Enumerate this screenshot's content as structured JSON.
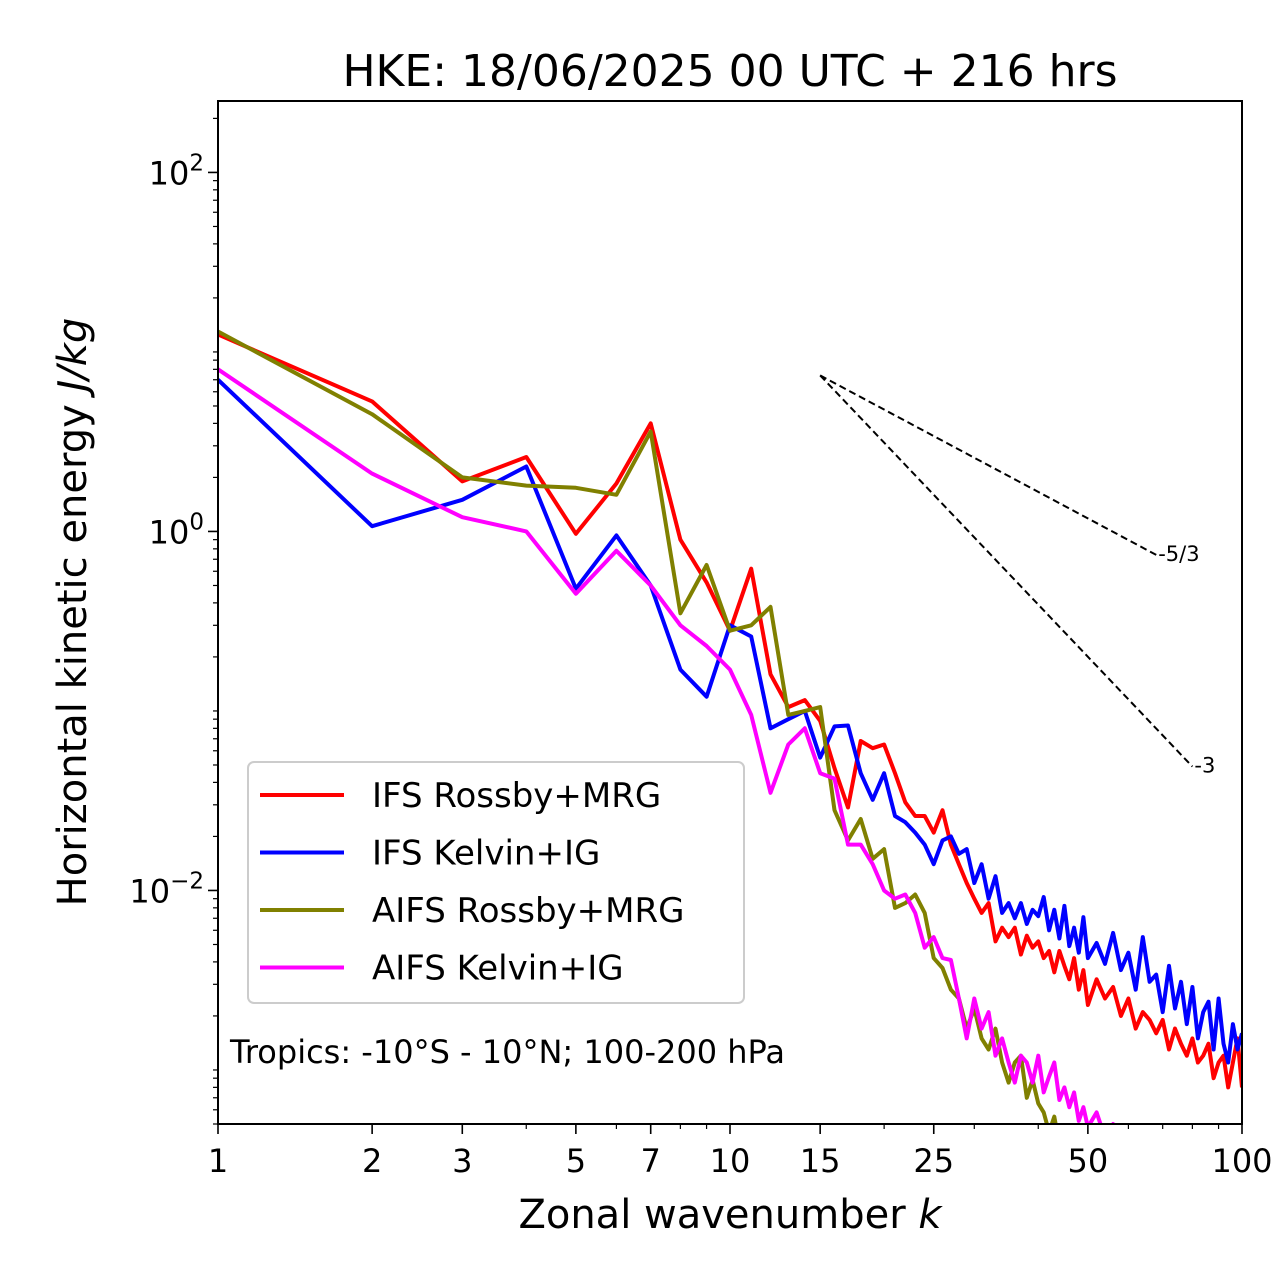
{
  "chart_data": {
    "type": "line",
    "title": "HKE: 18/06/2025 00 UTC + 216 hrs",
    "xlabel": "Zonal wavenumber k",
    "ylabel": "Horizontal kinetic energy J/kg",
    "x_scale": "log",
    "y_scale": "log",
    "xlim": [
      1,
      100
    ],
    "ylim": [
      0.0005,
      250
    ],
    "x_ticks": [
      1,
      2,
      3,
      5,
      7,
      10,
      15,
      25,
      50,
      100
    ],
    "x_tick_labels": [
      "1",
      "2",
      "3",
      "5",
      "7",
      "10",
      "15",
      "25",
      "50",
      "100"
    ],
    "y_ticks": [
      0.01,
      1,
      100
    ],
    "y_tick_labels": [
      "10^{−2}",
      "10^{0}",
      "10^{2}"
    ],
    "legend_position": "lower-left",
    "annotation": "Tropics: -10°S - 10°N; 100-200 hPa",
    "reference_lines": [
      {
        "label": "-5/3",
        "slope": -1.6667,
        "x": [
          15,
          68
        ],
        "y": [
          7.4,
          0.74
        ]
      },
      {
        "label": "-3",
        "slope": -3,
        "x": [
          15,
          80
        ],
        "y": [
          7.4,
          0.049
        ]
      }
    ],
    "series": [
      {
        "name": "IFS Rossby+MRG",
        "color": "#ff0000",
        "x": [
          1,
          2,
          3,
          4,
          5,
          6,
          7,
          8,
          9,
          10,
          11,
          12,
          13,
          14,
          15,
          16,
          17,
          18,
          19,
          20,
          21,
          22,
          23,
          24,
          25,
          26,
          27,
          28,
          29,
          30,
          31,
          32,
          33,
          34,
          35,
          36,
          37,
          38,
          39,
          40,
          41,
          42,
          43,
          44,
          45,
          46,
          47,
          48,
          49,
          50,
          52,
          54,
          56,
          58,
          60,
          62,
          64,
          66,
          68,
          70,
          72,
          74,
          76,
          78,
          80,
          82,
          84,
          86,
          88,
          90,
          92,
          94,
          96,
          98,
          100
        ],
        "y": [
          12.5,
          5.3,
          1.9,
          2.6,
          0.97,
          1.85,
          4.0,
          0.9,
          0.52,
          0.28,
          0.62,
          0.16,
          0.105,
          0.115,
          0.088,
          0.048,
          0.029,
          0.068,
          0.062,
          0.065,
          0.045,
          0.031,
          0.026,
          0.026,
          0.021,
          0.028,
          0.018,
          0.014,
          0.011,
          0.009,
          0.0075,
          0.0085,
          0.0052,
          0.0062,
          0.0055,
          0.0062,
          0.0044,
          0.0056,
          0.0048,
          0.0052,
          0.0042,
          0.0046,
          0.0035,
          0.0046,
          0.0038,
          0.0032,
          0.0042,
          0.0028,
          0.0036,
          0.0023,
          0.0032,
          0.0025,
          0.0029,
          0.002,
          0.0025,
          0.0017,
          0.0021,
          0.0019,
          0.0016,
          0.0019,
          0.0013,
          0.0017,
          0.0014,
          0.0012,
          0.0015,
          0.0011,
          0.0012,
          0.0014,
          0.0009,
          0.0011,
          0.0012,
          0.0008,
          0.0011,
          0.0015,
          0.0008
        ]
      },
      {
        "name": "IFS Kelvin+IG",
        "color": "#0000ff",
        "x": [
          1,
          2,
          3,
          4,
          5,
          6,
          7,
          8,
          9,
          10,
          11,
          12,
          13,
          14,
          15,
          16,
          17,
          18,
          19,
          20,
          21,
          22,
          23,
          24,
          25,
          26,
          27,
          28,
          29,
          30,
          31,
          32,
          33,
          34,
          35,
          36,
          37,
          38,
          39,
          40,
          41,
          42,
          43,
          44,
          45,
          46,
          47,
          48,
          49,
          50,
          52,
          54,
          56,
          58,
          60,
          62,
          64,
          66,
          68,
          70,
          72,
          74,
          76,
          78,
          80,
          82,
          84,
          86,
          88,
          90,
          92,
          94,
          96,
          98,
          100
        ],
        "y": [
          7.0,
          1.07,
          1.5,
          2.3,
          0.48,
          0.95,
          0.5,
          0.17,
          0.12,
          0.3,
          0.26,
          0.08,
          0.09,
          0.1,
          0.055,
          0.082,
          0.083,
          0.045,
          0.032,
          0.045,
          0.026,
          0.024,
          0.021,
          0.018,
          0.014,
          0.019,
          0.02,
          0.016,
          0.017,
          0.011,
          0.014,
          0.009,
          0.012,
          0.0075,
          0.0085,
          0.007,
          0.0085,
          0.0065,
          0.0078,
          0.0072,
          0.0092,
          0.006,
          0.0078,
          0.0054,
          0.0082,
          0.0049,
          0.0062,
          0.0045,
          0.0071,
          0.0042,
          0.0051,
          0.0039,
          0.0058,
          0.0036,
          0.0045,
          0.0028,
          0.0055,
          0.0031,
          0.0034,
          0.0021,
          0.0038,
          0.0022,
          0.0031,
          0.0018,
          0.0029,
          0.0015,
          0.0021,
          0.0024,
          0.0013,
          0.0025,
          0.0014,
          0.0011,
          0.0018,
          0.0013,
          0.0016
        ]
      },
      {
        "name": "AIFS Rossby+MRG",
        "color": "#808000",
        "x": [
          1,
          2,
          3,
          4,
          5,
          6,
          7,
          8,
          9,
          10,
          11,
          12,
          13,
          14,
          15,
          16,
          17,
          18,
          19,
          20,
          21,
          22,
          23,
          24,
          25,
          26,
          27,
          28,
          29,
          30,
          31,
          32,
          33,
          34,
          35,
          36,
          37,
          38,
          39,
          40,
          41,
          42,
          43,
          44,
          45,
          46,
          47,
          48,
          50
        ],
        "y": [
          13.0,
          4.5,
          2.0,
          1.8,
          1.75,
          1.6,
          3.6,
          0.35,
          0.65,
          0.28,
          0.3,
          0.38,
          0.095,
          0.1,
          0.105,
          0.028,
          0.019,
          0.025,
          0.015,
          0.017,
          0.008,
          0.0085,
          0.0095,
          0.0075,
          0.0042,
          0.0037,
          0.0028,
          0.0025,
          0.0017,
          0.0022,
          0.0015,
          0.0013,
          0.0017,
          0.0011,
          0.00085,
          0.0011,
          0.0012,
          0.0007,
          0.00088,
          0.00065,
          0.00058,
          0.00045,
          0.00055,
          0.00038,
          0.00042,
          0.00034,
          0.0004,
          0.00032,
          0.00028
        ]
      },
      {
        "name": "AIFS Kelvin+IG",
        "color": "#ff00ff",
        "x": [
          1,
          2,
          3,
          4,
          5,
          6,
          7,
          8,
          9,
          10,
          11,
          12,
          13,
          14,
          15,
          16,
          17,
          18,
          19,
          20,
          21,
          22,
          23,
          24,
          25,
          26,
          27,
          28,
          29,
          30,
          31,
          32,
          33,
          34,
          35,
          36,
          37,
          38,
          39,
          40,
          41,
          42,
          43,
          44,
          45,
          46,
          47,
          48,
          49,
          50,
          52,
          54,
          56,
          58,
          60
        ],
        "y": [
          8.0,
          2.1,
          1.2,
          1.0,
          0.45,
          0.78,
          0.5,
          0.3,
          0.23,
          0.17,
          0.095,
          0.035,
          0.065,
          0.08,
          0.045,
          0.042,
          0.018,
          0.018,
          0.014,
          0.01,
          0.009,
          0.0095,
          0.0075,
          0.0048,
          0.0055,
          0.0042,
          0.0041,
          0.0025,
          0.0015,
          0.0025,
          0.0017,
          0.0021,
          0.0012,
          0.0015,
          0.0011,
          0.00085,
          0.0012,
          0.0011,
          0.00085,
          0.0012,
          0.00075,
          0.00092,
          0.0011,
          0.00068,
          0.0008,
          0.00062,
          0.00075,
          0.00052,
          0.00062,
          0.00048,
          0.00058,
          0.00042,
          0.0005,
          0.00038,
          0.00045
        ]
      }
    ]
  }
}
